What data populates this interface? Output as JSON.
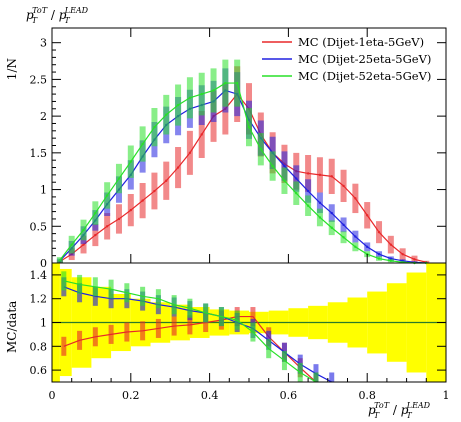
{
  "chart_data": {
    "type": "line",
    "title": "",
    "top_panel": {
      "ylabel": "1/N",
      "xlabel_top": {
        "base": "p",
        "sub": "T",
        "sup": "ToT",
        "sep": " / ",
        "base2": "p",
        "sub2": "T",
        "sup2": "LEAD"
      },
      "xlim": [
        0,
        1
      ],
      "ylim": [
        0,
        3.2
      ],
      "yticks": [
        "0",
        "0.5",
        "1",
        "1.5",
        "2",
        "2.5",
        "3"
      ],
      "ytick_values": [
        0,
        0.5,
        1,
        1.5,
        2,
        2.5,
        3
      ],
      "legend_position": "top-right",
      "series": [
        {
          "name": "MC (Dijet-1eta-5GeV)",
          "color": "#e8282a",
          "x": [
            0.02,
            0.05,
            0.08,
            0.11,
            0.14,
            0.17,
            0.2,
            0.23,
            0.26,
            0.29,
            0.32,
            0.35,
            0.38,
            0.41,
            0.44,
            0.47,
            0.5,
            0.53,
            0.56,
            0.59,
            0.62,
            0.65,
            0.68,
            0.71,
            0.74,
            0.77,
            0.8,
            0.83,
            0.86,
            0.89,
            0.92,
            0.95
          ],
          "y": [
            0.02,
            0.12,
            0.25,
            0.38,
            0.5,
            0.6,
            0.72,
            0.85,
            0.98,
            1.12,
            1.3,
            1.5,
            1.75,
            2.0,
            2.1,
            2.3,
            2.1,
            1.75,
            1.5,
            1.35,
            1.25,
            1.22,
            1.2,
            1.18,
            1.05,
            0.88,
            0.65,
            0.42,
            0.25,
            0.12,
            0.05,
            0.01
          ],
          "err": [
            0.02,
            0.08,
            0.12,
            0.15,
            0.18,
            0.2,
            0.22,
            0.24,
            0.25,
            0.26,
            0.28,
            0.3,
            0.32,
            0.35,
            0.35,
            0.38,
            0.35,
            0.3,
            0.28,
            0.26,
            0.25,
            0.25,
            0.24,
            0.24,
            0.22,
            0.2,
            0.18,
            0.15,
            0.12,
            0.08,
            0.05,
            0.02
          ]
        },
        {
          "name": "MC (Dijet-25eta-5GeV)",
          "color": "#2020e0",
          "x": [
            0.02,
            0.05,
            0.08,
            0.11,
            0.14,
            0.17,
            0.2,
            0.23,
            0.26,
            0.29,
            0.32,
            0.35,
            0.38,
            0.41,
            0.44,
            0.47,
            0.5,
            0.53,
            0.56,
            0.59,
            0.62,
            0.65,
            0.68,
            0.71,
            0.74,
            0.77,
            0.8,
            0.83,
            0.86,
            0.89,
            0.92,
            0.95
          ],
          "y": [
            0.03,
            0.2,
            0.38,
            0.58,
            0.8,
            1.0,
            1.2,
            1.45,
            1.68,
            1.88,
            2.0,
            2.1,
            2.15,
            2.2,
            2.35,
            2.3,
            1.95,
            1.7,
            1.5,
            1.32,
            1.15,
            0.98,
            0.82,
            0.68,
            0.52,
            0.36,
            0.22,
            0.12,
            0.06,
            0.03,
            0.01,
            0.0
          ],
          "err": [
            0.03,
            0.1,
            0.12,
            0.14,
            0.16,
            0.18,
            0.2,
            0.22,
            0.24,
            0.25,
            0.26,
            0.26,
            0.27,
            0.28,
            0.3,
            0.3,
            0.26,
            0.24,
            0.22,
            0.2,
            0.18,
            0.16,
            0.14,
            0.12,
            0.1,
            0.08,
            0.06,
            0.04,
            0.03,
            0.02,
            0.01,
            0.0
          ]
        },
        {
          "name": "MC (Dijet-52eta-5GeV)",
          "color": "#28e028",
          "x": [
            0.02,
            0.05,
            0.08,
            0.11,
            0.14,
            0.17,
            0.2,
            0.23,
            0.26,
            0.29,
            0.32,
            0.35,
            0.38,
            0.41,
            0.44,
            0.47,
            0.5,
            0.53,
            0.56,
            0.59,
            0.62,
            0.65,
            0.68,
            0.71,
            0.74,
            0.77,
            0.8,
            0.83,
            0.86,
            0.89,
            0.92,
            0.95
          ],
          "y": [
            0.04,
            0.25,
            0.45,
            0.68,
            0.92,
            1.15,
            1.38,
            1.62,
            1.85,
            2.02,
            2.15,
            2.25,
            2.3,
            2.35,
            2.45,
            2.45,
            1.85,
            1.55,
            1.32,
            1.12,
            0.95,
            0.78,
            0.62,
            0.48,
            0.35,
            0.22,
            0.12,
            0.06,
            0.03,
            0.01,
            0.0,
            0.0
          ],
          "err": [
            0.04,
            0.12,
            0.14,
            0.16,
            0.18,
            0.2,
            0.22,
            0.24,
            0.26,
            0.27,
            0.28,
            0.28,
            0.29,
            0.3,
            0.32,
            0.32,
            0.26,
            0.22,
            0.2,
            0.18,
            0.16,
            0.14,
            0.12,
            0.1,
            0.08,
            0.06,
            0.04,
            0.03,
            0.02,
            0.01,
            0.0,
            0.0
          ]
        }
      ]
    },
    "ratio_panel": {
      "ylabel": "MC/data",
      "xlabel": {
        "base": "p",
        "sub": "T",
        "sup": "ToT",
        "sep": " / ",
        "base2": "p",
        "sub2": "T",
        "sup2": "LEAD"
      },
      "xlim": [
        0,
        1
      ],
      "ylim": [
        0.5,
        1.5
      ],
      "yticks": [
        "0.6",
        "0.8",
        "1",
        "1.2",
        "1.4"
      ],
      "ytick_values": [
        0.6,
        0.8,
        1.0,
        1.2,
        1.4
      ],
      "xticks": [
        "0",
        "0.2",
        "0.4",
        "0.6",
        "0.8",
        "1"
      ],
      "xtick_values": [
        0,
        0.2,
        0.4,
        0.6,
        0.8,
        1.0
      ],
      "reference_line": 1.0,
      "band_color": "#ffff00",
      "band": {
        "x": [
          0.0,
          0.02,
          0.05,
          0.1,
          0.15,
          0.2,
          0.25,
          0.3,
          0.35,
          0.4,
          0.45,
          0.5,
          0.55,
          0.6,
          0.65,
          0.7,
          0.75,
          0.8,
          0.85,
          0.9,
          0.95,
          1.0
        ],
        "half_width": [
          0.5,
          0.45,
          0.38,
          0.3,
          0.24,
          0.2,
          0.17,
          0.15,
          0.13,
          0.11,
          0.1,
          0.09,
          0.1,
          0.12,
          0.14,
          0.17,
          0.21,
          0.26,
          0.33,
          0.42,
          0.5,
          0.5
        ]
      },
      "series": [
        {
          "color": "#e8282a",
          "x": [
            0.03,
            0.07,
            0.11,
            0.15,
            0.19,
            0.23,
            0.27,
            0.31,
            0.35,
            0.39,
            0.43,
            0.47,
            0.51,
            0.55,
            0.59,
            0.63,
            0.67
          ],
          "y": [
            0.8,
            0.85,
            0.88,
            0.9,
            0.92,
            0.93,
            0.95,
            0.97,
            0.98,
            1.0,
            1.02,
            1.05,
            1.05,
            0.88,
            0.75,
            0.62,
            0.5
          ]
        },
        {
          "color": "#2020e0",
          "x": [
            0.03,
            0.07,
            0.11,
            0.15,
            0.19,
            0.23,
            0.27,
            0.31,
            0.35,
            0.39,
            0.43,
            0.47,
            0.51,
            0.55,
            0.59,
            0.63,
            0.67,
            0.71
          ],
          "y": [
            1.3,
            1.25,
            1.22,
            1.2,
            1.2,
            1.18,
            1.15,
            1.13,
            1.1,
            1.08,
            1.05,
            1.0,
            0.95,
            0.85,
            0.75,
            0.65,
            0.57,
            0.5
          ]
        },
        {
          "color": "#28e028",
          "x": [
            0.03,
            0.07,
            0.11,
            0.15,
            0.19,
            0.23,
            0.27,
            0.31,
            0.35,
            0.39,
            0.43,
            0.47,
            0.51,
            0.55,
            0.59,
            0.63,
            0.67
          ],
          "y": [
            1.35,
            1.32,
            1.3,
            1.28,
            1.25,
            1.22,
            1.2,
            1.15,
            1.12,
            1.08,
            1.05,
            1.02,
            0.92,
            0.78,
            0.68,
            0.58,
            0.5
          ]
        }
      ]
    }
  }
}
